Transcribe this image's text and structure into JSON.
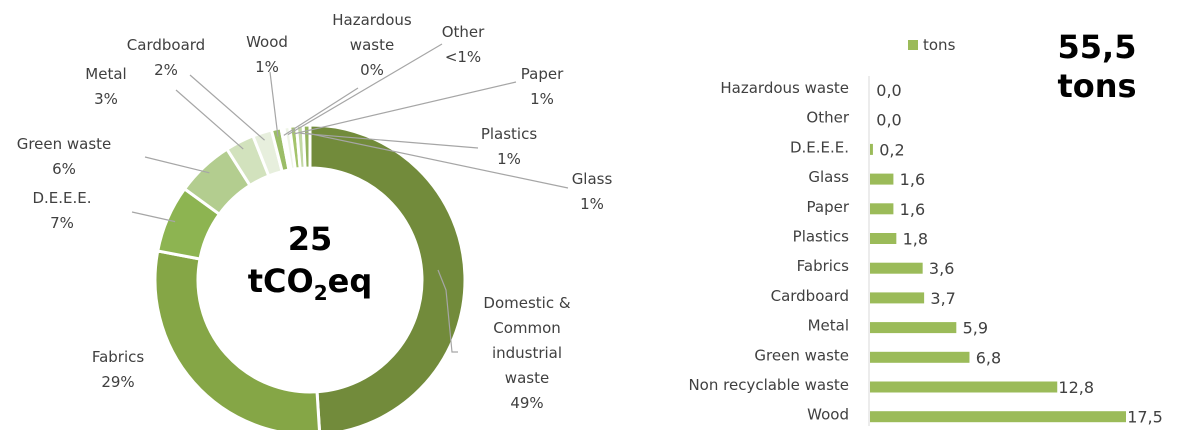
{
  "chart_data": [
    {
      "type": "pie",
      "center_value": "25",
      "center_unit_prefix": "tCO",
      "center_unit_sub": "2",
      "center_unit_suffix": "eq",
      "colors": {
        "domestic": "#728b3b",
        "fabrics": "#85a646",
        "deee": "#8db451",
        "green": "#b3cd8f",
        "metal": "#d2e2bd",
        "cardboard": "#e7efdd",
        "wood": "#9bbd67",
        "hazardous": "#ffffff",
        "other": "#eef4e6",
        "paper": "#a4c46b",
        "plastics": "#c3d8a4",
        "glass": "#93b35c",
        "leader": "#a6a6a6"
      },
      "slices": [
        {
          "key": "domestic",
          "label": "Domestic & Common industrial waste",
          "label_lines": [
            "Domestic &",
            "Common",
            "industrial",
            "waste"
          ],
          "pct_label": "49%",
          "value": 49
        },
        {
          "key": "fabrics",
          "label": "Fabrics",
          "label_lines": [
            "Fabrics"
          ],
          "pct_label": "29%",
          "value": 29
        },
        {
          "key": "deee",
          "label": "D.E.E.E.",
          "label_lines": [
            "D.E.E.E."
          ],
          "pct_label": "7%",
          "value": 7
        },
        {
          "key": "green",
          "label": "Green waste",
          "label_lines": [
            "Green waste"
          ],
          "pct_label": "6%",
          "value": 6
        },
        {
          "key": "metal",
          "label": "Metal",
          "label_lines": [
            "Metal"
          ],
          "pct_label": "3%",
          "value": 3
        },
        {
          "key": "cardboard",
          "label": "Cardboard",
          "label_lines": [
            "Cardboard"
          ],
          "pct_label": "2%",
          "value": 2
        },
        {
          "key": "wood",
          "label": "Wood",
          "label_lines": [
            "Wood"
          ],
          "pct_label": "1%",
          "value": 1
        },
        {
          "key": "hazardous",
          "label": "Hazardous waste",
          "label_lines": [
            "Hazardous",
            "waste"
          ],
          "pct_label": "0%",
          "value": 0.3
        },
        {
          "key": "other",
          "label": "Other",
          "label_lines": [
            "Other"
          ],
          "pct_label": "<1%",
          "value": 0.6
        },
        {
          "key": "paper",
          "label": "Paper",
          "label_lines": [
            "Paper"
          ],
          "pct_label": "1%",
          "value": 0.7
        },
        {
          "key": "plastics",
          "label": "Plastics",
          "label_lines": [
            "Plastics"
          ],
          "pct_label": "1%",
          "value": 0.7
        },
        {
          "key": "glass",
          "label": "Glass",
          "label_lines": [
            "Glass"
          ],
          "pct_label": "1%",
          "value": 0.7
        }
      ]
    },
    {
      "type": "bar",
      "orientation": "horizontal",
      "legend": "tons",
      "legend_position": "top",
      "total_label_value": "55,5",
      "total_label_unit": "tons",
      "bar_color": "#9bbb59",
      "axis_color": "#d9d9d9",
      "xlim": [
        0,
        17.5
      ],
      "categories": [
        "Hazardous waste",
        "Other",
        "D.E.E.E.",
        "Glass",
        "Paper",
        "Plastics",
        "Fabrics",
        "Cardboard",
        "Metal",
        "Green waste",
        "Non recyclable waste",
        "Wood"
      ],
      "values": [
        0.0,
        0.0,
        0.2,
        1.6,
        1.6,
        1.8,
        3.6,
        3.7,
        5.9,
        6.8,
        12.8,
        17.5
      ],
      "value_labels": [
        "0,0",
        "0,0",
        "0,2",
        "1,6",
        "1,6",
        "1,8",
        "3,6",
        "3,7",
        "5,9",
        "6,8",
        "12,8",
        "17,5"
      ]
    }
  ]
}
